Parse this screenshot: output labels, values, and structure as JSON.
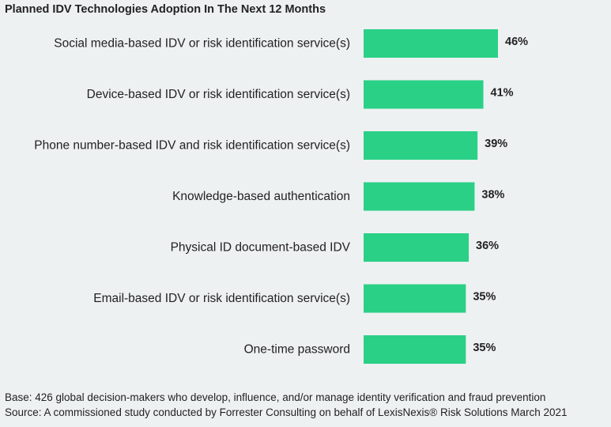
{
  "chart_data": {
    "type": "bar",
    "orientation": "horizontal",
    "title": "Planned IDV Technologies Adoption In The Next 12 Months",
    "categories": [
      "Social media-based IDV or risk identification service(s)",
      "Device-based IDV or risk identification service(s)",
      "Phone number-based IDV and risk identification service(s)",
      "Knowledge-based authentication",
      "Physical ID document-based IDV",
      "Email-based IDV or risk identification service(s)",
      "One-time password"
    ],
    "values": [
      46,
      41,
      39,
      38,
      36,
      35,
      35
    ],
    "value_labels": [
      "46%",
      "41%",
      "39%",
      "38%",
      "36%",
      "35%",
      "35%"
    ],
    "unit": "%",
    "xlim": [
      0,
      46
    ],
    "grid": false,
    "legend": "none",
    "bar_color": "#2bd087"
  },
  "notes": {
    "base": "Base: 426 global decision-makers who develop, influence, and/or manage identity verification and fraud prevention",
    "source": "Source: A commissioned study conducted by Forrester Consulting on behalf of LexisNexis® Risk Solutions March 2021"
  },
  "colors": {
    "background": "#eef1f2",
    "text": "#222222",
    "bar": "#2bd087"
  }
}
